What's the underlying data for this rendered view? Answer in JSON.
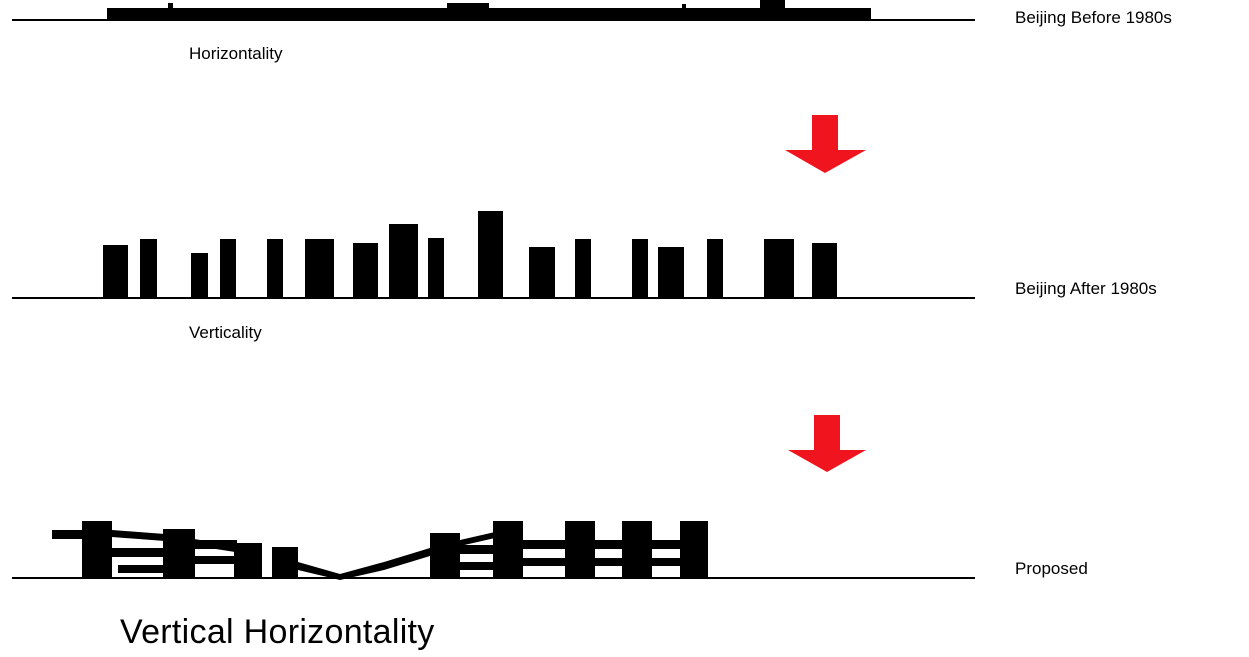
{
  "colors": {
    "building": "#000000",
    "ground": "#000000",
    "arrow": "#f0141e",
    "background": "#ffffff"
  },
  "rows": [
    {
      "label": "Beijing Before 1980s",
      "caption": "Horizontality",
      "form": "low continuous horizontal mass"
    },
    {
      "label": "Beijing After 1980s",
      "caption": "Verticality",
      "form": "separate vertical towers"
    },
    {
      "label": "Proposed",
      "caption": "",
      "form": "linked towers and bridging slabs"
    }
  ],
  "title": "Vertical Horizontality",
  "arrows": [
    {
      "icon": "down-arrow-icon",
      "direction": "down"
    },
    {
      "icon": "down-arrow-icon",
      "direction": "down"
    }
  ]
}
